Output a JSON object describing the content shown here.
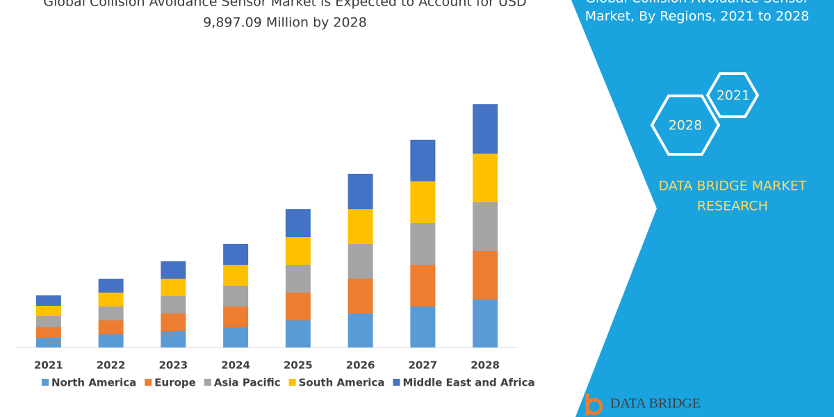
{
  "chart_data": {
    "type": "bar",
    "stacked": true,
    "title": [
      "Global Collision Avoidance Sensor Market is Expected to Account for USD",
      "9,897.09 Million by 2028"
    ],
    "categories": [
      "2021",
      "2022",
      "2023",
      "2024",
      "2025",
      "2026",
      "2027",
      "2028"
    ],
    "series": [
      {
        "name": "North America",
        "color": "#5b9bd5",
        "values": [
          14,
          19,
          24,
          29,
          39,
          49,
          59,
          69
        ]
      },
      {
        "name": "Europe",
        "color": "#ed7d31",
        "values": [
          15,
          20,
          25,
          30,
          40,
          50,
          60,
          70
        ]
      },
      {
        "name": "Asia Pacific",
        "color": "#a5a5a5",
        "values": [
          16,
          20,
          25,
          30,
          40,
          50,
          60,
          70
        ]
      },
      {
        "name": "South America",
        "color": "#ffc000",
        "values": [
          15,
          20,
          25,
          30,
          40,
          50,
          60,
          70
        ]
      },
      {
        "name": "Middle East and Africa",
        "color": "#4472c4",
        "values": [
          15,
          20,
          25,
          30,
          40,
          51,
          60,
          71
        ]
      }
    ],
    "ylim": [
      0,
      400
    ],
    "legend": "bottom"
  },
  "panel": {
    "title": [
      "Global Collision Avoidance Sensor",
      "Market, By Regions, 2021 to 2028"
    ],
    "badges": [
      "2021",
      "2028"
    ],
    "brand": [
      "DATA BRIDGE MARKET",
      "RESEARCH"
    ],
    "logo": "DATA BRIDGE"
  }
}
